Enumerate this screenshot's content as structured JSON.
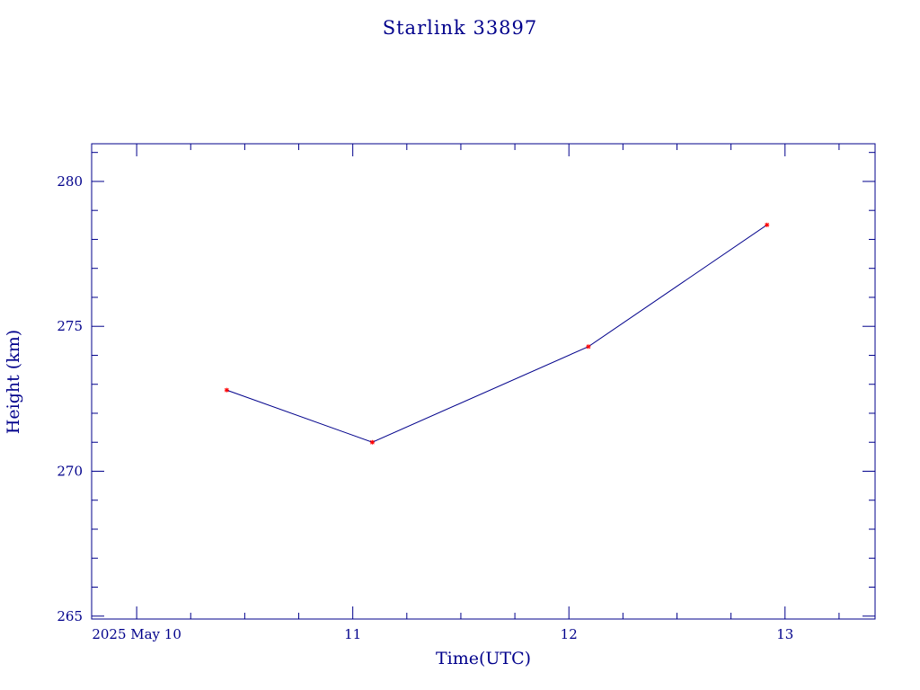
{
  "chart_data": {
    "type": "line",
    "title": "Starlink 33897",
    "xlabel": "Time(UTC)",
    "ylabel": "Height (km)",
    "x_tick_labels": [
      "2025 May 10",
      "11",
      "12",
      "13"
    ],
    "x_tick_values": [
      "2025-05-10T00:00",
      "2025-05-11T00:00",
      "2025-05-12T00:00",
      "2025-05-13T00:00"
    ],
    "xlim": [
      "2025-05-09T19:00",
      "2025-05-13T10:00"
    ],
    "y_ticks": [
      265,
      270,
      275,
      280
    ],
    "ylim": [
      264.9,
      281.3
    ],
    "grid": false,
    "line_color": "#00008b",
    "marker_color": "#ff0000",
    "text_color": "#00008b",
    "series": [
      {
        "points": [
          {
            "x": "2025-05-10T10:00",
            "y": 272.8
          },
          {
            "x": "2025-05-11T02:10",
            "y": 271.0
          },
          {
            "x": "2025-05-12T02:10",
            "y": 274.3
          },
          {
            "x": "2025-05-12T22:00",
            "y": 278.5
          }
        ]
      }
    ]
  }
}
